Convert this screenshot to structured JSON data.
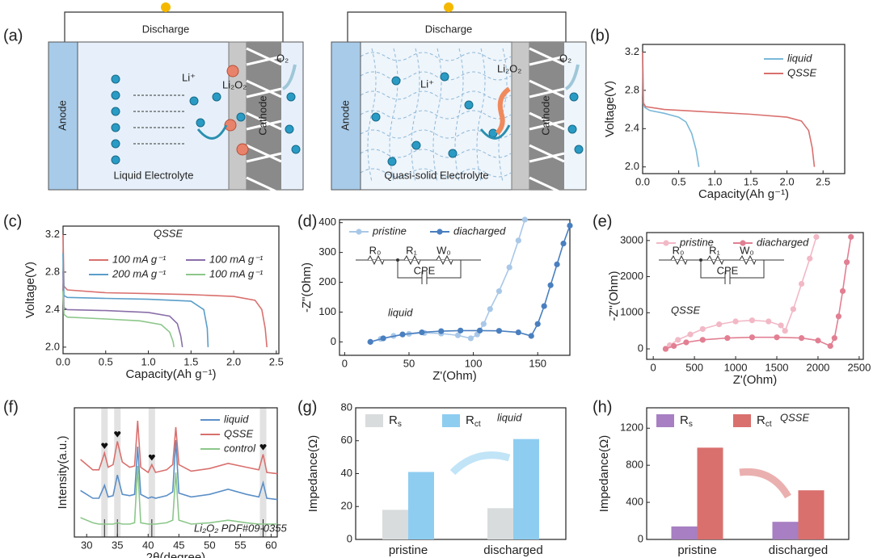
{
  "diagram": {
    "label": "(a)",
    "schematics": [
      {
        "discharge": "Discharge",
        "anode": "Anode",
        "ion": "Li⁺",
        "product": "Li₂O₂",
        "cathode": "Cathode",
        "gas": "O₂",
        "electrolyte": "Liquid Electrolyte"
      },
      {
        "discharge": "Discharge",
        "anode": "Anode",
        "ion": "Li⁺",
        "product": "Li₂O₂",
        "cathode": "Cathode",
        "gas": "O₂",
        "electrolyte": "Quasi-solid Electrolyte"
      }
    ]
  },
  "chart_data": [
    {
      "type": "line",
      "panel_label": "(b)",
      "xlabel": "Capacity(Ah g⁻¹)",
      "ylabel": "Voltage(V)",
      "xlim": [
        0,
        2.8
      ],
      "ylim": [
        1.93,
        3.28
      ],
      "xticks": [
        {
          "value": 0,
          "label": "0.0"
        },
        0.5,
        {
          "value": 1,
          "label": "1.0"
        },
        1.5,
        {
          "value": 2,
          "label": "2.0"
        },
        2.5
      ],
      "yticks": [
        {
          "value": 2,
          "label": "2.0"
        },
        2.4,
        2.8,
        3.2
      ],
      "legend": "upper right",
      "legend_columns": 1,
      "series": [
        {
          "name": "liquid",
          "color": "#7ab8d9",
          "x": [
            0,
            0.01,
            0.03,
            0.1,
            0.3,
            0.5,
            0.6,
            0.68,
            0.74,
            0.78
          ],
          "values": [
            3.2,
            2.66,
            2.62,
            2.59,
            2.56,
            2.52,
            2.47,
            2.35,
            2.18,
            2.0
          ]
        },
        {
          "name": "QSSE",
          "color": "#d9706e",
          "x": [
            0,
            0.01,
            0.04,
            0.3,
            1.0,
            1.5,
            2.0,
            2.2,
            2.3,
            2.35,
            2.38
          ],
          "values": [
            3.2,
            2.67,
            2.63,
            2.6,
            2.57,
            2.55,
            2.52,
            2.48,
            2.38,
            2.2,
            2.0
          ]
        }
      ]
    },
    {
      "type": "line",
      "panel_label": "(c)",
      "xlabel": "Capacity(Ah g⁻¹)",
      "ylabel": "Voltage(V)",
      "annotation": "QSSE",
      "xlim": [
        0,
        2.53
      ],
      "ylim": [
        1.93,
        3.29
      ],
      "xticks": [
        {
          "value": 0,
          "label": "0.0"
        },
        0.5,
        {
          "value": 1,
          "label": "1.0"
        },
        1.5,
        {
          "value": 2,
          "label": "2.0"
        },
        2.5
      ],
      "yticks": [
        {
          "value": 2,
          "label": "2.0"
        },
        2.4,
        2.8,
        3.2
      ],
      "legend": "upper right",
      "legend_columns": 2,
      "series": [
        {
          "name": "100 mA g⁻¹",
          "color": "#d9706e",
          "x": [
            0,
            0.01,
            0.05,
            0.5,
            1.0,
            1.5,
            2.0,
            2.25,
            2.33,
            2.37,
            2.39
          ],
          "values": [
            3.2,
            2.65,
            2.61,
            2.58,
            2.57,
            2.56,
            2.54,
            2.5,
            2.4,
            2.2,
            2.0
          ]
        },
        {
          "name": "100 mA g⁻¹",
          "color": "#8a6fa8",
          "x": [
            0,
            0.01,
            0.05,
            0.5,
            1.0,
            1.25,
            1.34,
            1.38,
            1.4
          ],
          "values": [
            2.8,
            2.42,
            2.4,
            2.39,
            2.37,
            2.33,
            2.25,
            2.12,
            2.0
          ]
        },
        {
          "name": "200 mA g⁻¹",
          "color": "#5a9ec9",
          "x": [
            0,
            0.01,
            0.05,
            0.5,
            1.0,
            1.5,
            1.65,
            1.69,
            1.7
          ],
          "values": [
            3.0,
            2.55,
            2.53,
            2.52,
            2.51,
            2.49,
            2.4,
            2.2,
            2.0
          ]
        },
        {
          "name": "100 mA g⁻¹",
          "color": "#8cc78a",
          "x": [
            0,
            0.01,
            0.05,
            0.5,
            0.9,
            1.15,
            1.25,
            1.29,
            1.3
          ],
          "values": [
            2.6,
            2.35,
            2.32,
            2.3,
            2.28,
            2.24,
            2.16,
            2.06,
            2.0
          ]
        }
      ]
    },
    {
      "type": "scatter",
      "panel_label": "(d)",
      "xlabel": "Z'(Ohm)",
      "ylabel": "-Z\"(Ohm)",
      "annotation": "liquid",
      "inset_labels": [
        "R₀",
        "R₁",
        "W₀",
        "CPE"
      ],
      "xlim": [
        -4,
        175
      ],
      "ylim": [
        -45,
        410
      ],
      "xticks": [
        0,
        50,
        100,
        150
      ],
      "yticks": [
        0,
        100,
        200,
        300,
        400
      ],
      "legend": "upper left",
      "legend_columns": 2,
      "series": [
        {
          "name": "pristine",
          "color": "#a9c8e8",
          "x": [
            20,
            28,
            38,
            50,
            62,
            75,
            88,
            98,
            103,
            108,
            113,
            120,
            128,
            135,
            140
          ],
          "values": [
            0,
            10,
            20,
            27,
            30,
            28,
            22,
            12,
            25,
            60,
            110,
            170,
            250,
            340,
            410
          ]
        },
        {
          "name": "diacharged",
          "color": "#4a7fbf",
          "x": [
            20,
            30,
            45,
            60,
            75,
            90,
            105,
            120,
            135,
            145,
            150,
            155,
            160,
            165,
            170,
            175
          ],
          "values": [
            0,
            12,
            25,
            32,
            36,
            38,
            38,
            37,
            32,
            20,
            60,
            120,
            190,
            260,
            330,
            390
          ]
        }
      ]
    },
    {
      "type": "scatter",
      "panel_label": "(e)",
      "xlabel": "Z'(Ohm)",
      "ylabel": "-Z\"(Ohm)",
      "annotation": "QSSE",
      "inset_labels": [
        "R₀",
        "R₁",
        "W₀",
        "CPE"
      ],
      "xlim": [
        -80,
        2550
      ],
      "ylim": [
        -290,
        3220
      ],
      "xticks": [
        0,
        500,
        1000,
        1500,
        2000,
        2500
      ],
      "yticks": [
        0,
        1000,
        2000,
        3000
      ],
      "legend": "upper left",
      "legend_columns": 2,
      "series": [
        {
          "name": "pristine",
          "color": "#f2b8c6",
          "x": [
            150,
            200,
            300,
            450,
            600,
            800,
            1000,
            1200,
            1400,
            1550,
            1600,
            1700,
            1800,
            1900,
            1980
          ],
          "values": [
            0,
            100,
            250,
            400,
            550,
            680,
            760,
            790,
            760,
            650,
            500,
            1100,
            1800,
            2500,
            3100
          ]
        },
        {
          "name": "diacharged",
          "color": "#e27f92",
          "x": [
            150,
            250,
            400,
            600,
            900,
            1200,
            1500,
            1800,
            2000,
            2150,
            2200,
            2250,
            2300,
            2350,
            2400
          ],
          "values": [
            0,
            80,
            180,
            250,
            300,
            320,
            320,
            300,
            230,
            80,
            300,
            900,
            1600,
            2400,
            3100
          ]
        }
      ]
    },
    {
      "type": "line",
      "panel_label": "(f)",
      "xlabel": "2θ(degree)",
      "ylabel": "Intensity(a.u.)",
      "annotation": "Li₂O₂  PDF#09-0355",
      "reference_peaks": [
        32.9,
        35,
        40.6,
        58.7
      ],
      "xlim": [
        28,
        61
      ],
      "ylim": [
        0,
        10
      ],
      "xticks": [
        30,
        35,
        40,
        45,
        50,
        55,
        60
      ],
      "legend": "upper right",
      "legend_columns": 1,
      "series": [
        {
          "name": "liquid",
          "color": "#5b8fc7",
          "x": [
            29,
            30,
            31,
            32,
            32.9,
            33.5,
            34.3,
            35,
            35.8,
            37,
            37.8,
            38.3,
            38.8,
            40,
            40.6,
            41.2,
            43,
            44,
            44.5,
            45,
            47,
            50,
            53,
            56,
            58,
            58.7,
            59.3,
            61
          ],
          "values": [
            3.6,
            3.3,
            3.0,
            3.0,
            4.0,
            3.1,
            3.2,
            4.8,
            3.3,
            3.2,
            3.3,
            7.0,
            3.3,
            3.0,
            3.1,
            3.0,
            3.2,
            3.5,
            7.5,
            3.4,
            3.1,
            3.3,
            3.7,
            3.3,
            3.1,
            4.2,
            3.0,
            2.9
          ]
        },
        {
          "name": "QSSE",
          "color": "#d9706e",
          "x": [
            29,
            30,
            31,
            32,
            32.9,
            33.5,
            34.3,
            35,
            35.8,
            37,
            37.8,
            38.3,
            38.8,
            40,
            40.6,
            41.2,
            43,
            44,
            44.5,
            45,
            47,
            50,
            53,
            56,
            58,
            58.7,
            59.3,
            61
          ],
          "values": [
            6.0,
            5.6,
            5.2,
            5.2,
            6.5,
            5.4,
            5.6,
            7.4,
            5.8,
            5.4,
            5.5,
            9.0,
            5.4,
            5.0,
            5.6,
            5.0,
            5.2,
            5.6,
            8.5,
            5.6,
            5.1,
            5.3,
            5.7,
            5.4,
            5.2,
            6.4,
            5.0,
            4.9
          ]
        },
        {
          "name": "control",
          "color": "#8cc78a",
          "x": [
            29,
            30,
            31,
            32,
            32.9,
            33.5,
            34.3,
            35,
            35.8,
            37,
            37.8,
            38.3,
            38.8,
            40,
            40.6,
            41.2,
            43,
            44,
            44.5,
            45,
            47,
            50,
            53,
            56,
            58,
            58.7,
            59.3,
            61
          ],
          "values": [
            1.5,
            1.3,
            1.1,
            1.0,
            1.0,
            1.0,
            1.0,
            1.1,
            1.0,
            1.0,
            1.1,
            5.5,
            1.1,
            1.0,
            1.0,
            1.0,
            1.1,
            1.3,
            5.0,
            1.3,
            1.0,
            1.1,
            1.3,
            1.1,
            1.0,
            1.0,
            1.0,
            1.0
          ]
        }
      ]
    },
    {
      "type": "bar",
      "panel_label": "(g)",
      "ylabel": "Impedance(Ω)",
      "annotation": "liquid",
      "categories": [
        "pristine",
        "discharged"
      ],
      "ylim": [
        0,
        80
      ],
      "yticks": [
        0,
        20,
        40,
        60,
        80
      ],
      "legend": "upper left",
      "legend_columns": 2,
      "series": [
        {
          "name": "Rs",
          "color": "#d9dcdc",
          "values": [
            18,
            19
          ]
        },
        {
          "name": "Rct",
          "color": "#8ecdf0",
          "values": [
            41,
            61
          ]
        }
      ]
    },
    {
      "type": "bar",
      "panel_label": "(h)",
      "ylabel": "Impedance(Ω)",
      "annotation": "QSSE",
      "categories": [
        "pristine",
        "discharged"
      ],
      "ylim": [
        0,
        1420
      ],
      "yticks": [
        0,
        400,
        800,
        1200
      ],
      "legend": "upper left",
      "legend_columns": 2,
      "series": [
        {
          "name": "Rs",
          "color": "#a77fc2",
          "values": [
            140,
            190
          ]
        },
        {
          "name": "Rct",
          "color": "#d9706e",
          "values": [
            990,
            530
          ]
        }
      ]
    }
  ]
}
